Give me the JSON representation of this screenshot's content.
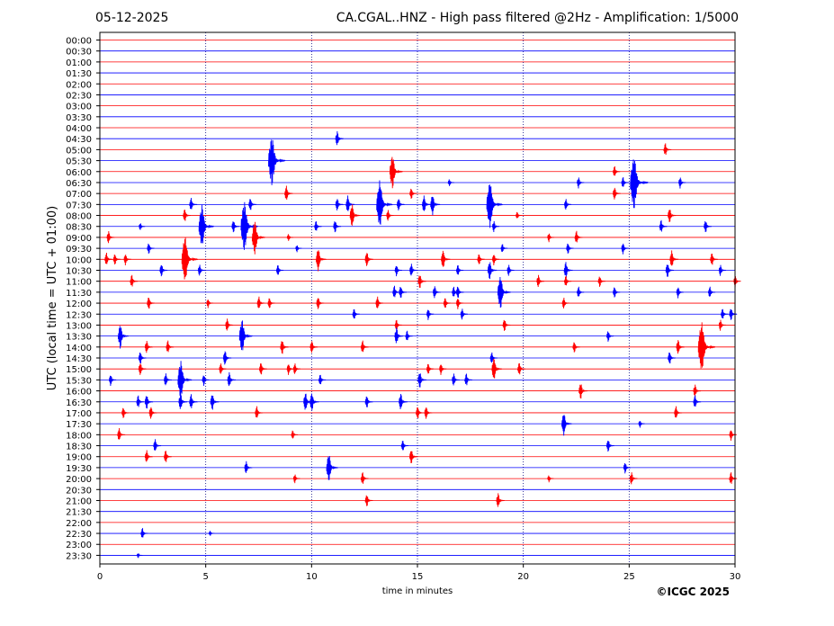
{
  "header": {
    "date": "05-12-2025",
    "title": "CA.CGAL..HNZ - High pass filtered @2Hz - Amplification: 1/5000"
  },
  "footer": {
    "credit": "©ICGC 2025"
  },
  "chart_data": {
    "type": "line",
    "xlabel": "time in minutes",
    "ylabel": "UTC (local time = UTC + 01:00)",
    "xlim": [
      0,
      30
    ],
    "xticks": [
      0,
      5,
      10,
      15,
      20,
      25,
      30
    ],
    "grid": "vertical dotted at 5, 10, 15, 20, 25",
    "row_colors": [
      "#ff0000",
      "#0000ff"
    ],
    "rows": [
      "00:00",
      "00:30",
      "01:00",
      "01:30",
      "02:00",
      "02:30",
      "03:00",
      "03:30",
      "04:00",
      "04:30",
      "05:00",
      "05:30",
      "06:00",
      "06:30",
      "07:00",
      "07:30",
      "08:00",
      "08:30",
      "09:00",
      "09:30",
      "10:00",
      "10:30",
      "11:00",
      "11:30",
      "12:00",
      "12:30",
      "13:00",
      "13:30",
      "14:00",
      "14:30",
      "15:00",
      "15:30",
      "16:00",
      "16:30",
      "17:00",
      "17:30",
      "18:00",
      "18:30",
      "19:00",
      "19:30",
      "20:00",
      "20:30",
      "21:00",
      "21:30",
      "22:00",
      "22:30",
      "23:00",
      "23:30"
    ],
    "events": [
      {
        "row": 9,
        "t": 11.2,
        "a": 0.4
      },
      {
        "row": 10,
        "t": 26.7,
        "a": 0.35
      },
      {
        "row": 11,
        "t": 8.1,
        "a": 1.3
      },
      {
        "row": 12,
        "t": 13.8,
        "a": 0.9
      },
      {
        "row": 12,
        "t": 24.3,
        "a": 0.3
      },
      {
        "row": 13,
        "t": 16.5,
        "a": 0.2
      },
      {
        "row": 13,
        "t": 22.6,
        "a": 0.3
      },
      {
        "row": 13,
        "t": 24.7,
        "a": 0.3
      },
      {
        "row": 13,
        "t": 25.2,
        "a": 1.4
      },
      {
        "row": 13,
        "t": 27.4,
        "a": 0.3
      },
      {
        "row": 14,
        "t": 8.8,
        "a": 0.4
      },
      {
        "row": 14,
        "t": 14.7,
        "a": 0.3
      },
      {
        "row": 14,
        "t": 24.3,
        "a": 0.35
      },
      {
        "row": 15,
        "t": 4.3,
        "a": 0.35
      },
      {
        "row": 15,
        "t": 7.1,
        "a": 0.35
      },
      {
        "row": 15,
        "t": 11.2,
        "a": 0.35
      },
      {
        "row": 15,
        "t": 11.7,
        "a": 0.45
      },
      {
        "row": 15,
        "t": 13.2,
        "a": 1.2
      },
      {
        "row": 15,
        "t": 14.1,
        "a": 0.35
      },
      {
        "row": 15,
        "t": 15.3,
        "a": 0.45
      },
      {
        "row": 15,
        "t": 15.7,
        "a": 0.55
      },
      {
        "row": 15,
        "t": 18.4,
        "a": 1.2
      },
      {
        "row": 15,
        "t": 22.0,
        "a": 0.3
      },
      {
        "row": 16,
        "t": 4.0,
        "a": 0.35
      },
      {
        "row": 16,
        "t": 11.9,
        "a": 0.6
      },
      {
        "row": 16,
        "t": 13.6,
        "a": 0.3
      },
      {
        "row": 16,
        "t": 19.7,
        "a": 0.2
      },
      {
        "row": 16,
        "t": 26.9,
        "a": 0.4
      },
      {
        "row": 17,
        "t": 1.9,
        "a": 0.2
      },
      {
        "row": 17,
        "t": 4.8,
        "a": 1.1
      },
      {
        "row": 17,
        "t": 6.3,
        "a": 0.35
      },
      {
        "row": 17,
        "t": 6.8,
        "a": 1.3
      },
      {
        "row": 17,
        "t": 10.2,
        "a": 0.3
      },
      {
        "row": 17,
        "t": 11.1,
        "a": 0.35
      },
      {
        "row": 17,
        "t": 18.6,
        "a": 0.3
      },
      {
        "row": 17,
        "t": 26.5,
        "a": 0.35
      },
      {
        "row": 17,
        "t": 28.6,
        "a": 0.35
      },
      {
        "row": 18,
        "t": 0.4,
        "a": 0.35
      },
      {
        "row": 18,
        "t": 7.3,
        "a": 0.9
      },
      {
        "row": 18,
        "t": 8.9,
        "a": 0.2
      },
      {
        "row": 18,
        "t": 21.2,
        "a": 0.25
      },
      {
        "row": 18,
        "t": 22.5,
        "a": 0.35
      },
      {
        "row": 19,
        "t": 2.3,
        "a": 0.3
      },
      {
        "row": 19,
        "t": 9.3,
        "a": 0.2
      },
      {
        "row": 19,
        "t": 19.0,
        "a": 0.25
      },
      {
        "row": 19,
        "t": 22.1,
        "a": 0.3
      },
      {
        "row": 19,
        "t": 24.7,
        "a": 0.3
      },
      {
        "row": 20,
        "t": 0.3,
        "a": 0.35
      },
      {
        "row": 20,
        "t": 0.7,
        "a": 0.3
      },
      {
        "row": 20,
        "t": 1.2,
        "a": 0.3
      },
      {
        "row": 20,
        "t": 4.0,
        "a": 1.2
      },
      {
        "row": 20,
        "t": 10.3,
        "a": 0.6
      },
      {
        "row": 20,
        "t": 12.6,
        "a": 0.4
      },
      {
        "row": 20,
        "t": 16.2,
        "a": 0.5
      },
      {
        "row": 20,
        "t": 17.9,
        "a": 0.3
      },
      {
        "row": 20,
        "t": 18.6,
        "a": 0.3
      },
      {
        "row": 20,
        "t": 27.0,
        "a": 0.45
      },
      {
        "row": 20,
        "t": 28.9,
        "a": 0.35
      },
      {
        "row": 21,
        "t": 2.9,
        "a": 0.35
      },
      {
        "row": 21,
        "t": 4.7,
        "a": 0.3
      },
      {
        "row": 21,
        "t": 8.4,
        "a": 0.3
      },
      {
        "row": 21,
        "t": 14.0,
        "a": 0.3
      },
      {
        "row": 21,
        "t": 14.7,
        "a": 0.35
      },
      {
        "row": 21,
        "t": 16.9,
        "a": 0.3
      },
      {
        "row": 21,
        "t": 18.4,
        "a": 0.5
      },
      {
        "row": 21,
        "t": 19.3,
        "a": 0.3
      },
      {
        "row": 21,
        "t": 22.0,
        "a": 0.45
      },
      {
        "row": 21,
        "t": 26.8,
        "a": 0.4
      },
      {
        "row": 21,
        "t": 29.3,
        "a": 0.3
      },
      {
        "row": 22,
        "t": 1.5,
        "a": 0.35
      },
      {
        "row": 22,
        "t": 15.1,
        "a": 0.4
      },
      {
        "row": 22,
        "t": 20.7,
        "a": 0.35
      },
      {
        "row": 22,
        "t": 22.0,
        "a": 0.3
      },
      {
        "row": 22,
        "t": 23.6,
        "a": 0.3
      },
      {
        "row": 22,
        "t": 30.0,
        "a": 0.3
      },
      {
        "row": 23,
        "t": 13.9,
        "a": 0.35
      },
      {
        "row": 23,
        "t": 14.2,
        "a": 0.35
      },
      {
        "row": 23,
        "t": 15.8,
        "a": 0.35
      },
      {
        "row": 23,
        "t": 16.7,
        "a": 0.3
      },
      {
        "row": 23,
        "t": 16.9,
        "a": 0.35
      },
      {
        "row": 23,
        "t": 18.9,
        "a": 0.9
      },
      {
        "row": 23,
        "t": 22.6,
        "a": 0.3
      },
      {
        "row": 23,
        "t": 24.3,
        "a": 0.3
      },
      {
        "row": 23,
        "t": 27.3,
        "a": 0.3
      },
      {
        "row": 23,
        "t": 28.8,
        "a": 0.3
      },
      {
        "row": 24,
        "t": 2.3,
        "a": 0.35
      },
      {
        "row": 24,
        "t": 5.1,
        "a": 0.25
      },
      {
        "row": 24,
        "t": 7.5,
        "a": 0.35
      },
      {
        "row": 24,
        "t": 8.0,
        "a": 0.3
      },
      {
        "row": 24,
        "t": 10.3,
        "a": 0.35
      },
      {
        "row": 24,
        "t": 13.1,
        "a": 0.35
      },
      {
        "row": 24,
        "t": 16.3,
        "a": 0.3
      },
      {
        "row": 24,
        "t": 16.9,
        "a": 0.3
      },
      {
        "row": 24,
        "t": 21.9,
        "a": 0.3
      },
      {
        "row": 25,
        "t": 12.0,
        "a": 0.3
      },
      {
        "row": 25,
        "t": 15.5,
        "a": 0.3
      },
      {
        "row": 25,
        "t": 17.1,
        "a": 0.3
      },
      {
        "row": 25,
        "t": 29.4,
        "a": 0.3
      },
      {
        "row": 25,
        "t": 29.8,
        "a": 0.35
      },
      {
        "row": 26,
        "t": 6.0,
        "a": 0.35
      },
      {
        "row": 26,
        "t": 14.0,
        "a": 0.3
      },
      {
        "row": 26,
        "t": 19.1,
        "a": 0.35
      },
      {
        "row": 26,
        "t": 29.3,
        "a": 0.3
      },
      {
        "row": 27,
        "t": 0.95,
        "a": 0.65
      },
      {
        "row": 27,
        "t": 6.7,
        "a": 0.9
      },
      {
        "row": 27,
        "t": 14.0,
        "a": 0.45
      },
      {
        "row": 27,
        "t": 14.5,
        "a": 0.3
      },
      {
        "row": 27,
        "t": 24.0,
        "a": 0.3
      },
      {
        "row": 28,
        "t": 2.2,
        "a": 0.35
      },
      {
        "row": 28,
        "t": 3.2,
        "a": 0.35
      },
      {
        "row": 28,
        "t": 8.6,
        "a": 0.4
      },
      {
        "row": 28,
        "t": 10.0,
        "a": 0.35
      },
      {
        "row": 28,
        "t": 12.4,
        "a": 0.35
      },
      {
        "row": 28,
        "t": 22.4,
        "a": 0.3
      },
      {
        "row": 28,
        "t": 27.3,
        "a": 0.4
      },
      {
        "row": 28,
        "t": 28.4,
        "a": 1.3
      },
      {
        "row": 29,
        "t": 1.9,
        "a": 0.35
      },
      {
        "row": 29,
        "t": 5.9,
        "a": 0.4
      },
      {
        "row": 29,
        "t": 18.5,
        "a": 0.3
      },
      {
        "row": 29,
        "t": 26.9,
        "a": 0.35
      },
      {
        "row": 30,
        "t": 1.9,
        "a": 0.35
      },
      {
        "row": 30,
        "t": 5.7,
        "a": 0.3
      },
      {
        "row": 30,
        "t": 7.6,
        "a": 0.35
      },
      {
        "row": 30,
        "t": 8.9,
        "a": 0.3
      },
      {
        "row": 30,
        "t": 9.2,
        "a": 0.3
      },
      {
        "row": 30,
        "t": 15.5,
        "a": 0.3
      },
      {
        "row": 30,
        "t": 16.1,
        "a": 0.3
      },
      {
        "row": 30,
        "t": 18.6,
        "a": 0.6
      },
      {
        "row": 30,
        "t": 19.8,
        "a": 0.35
      },
      {
        "row": 31,
        "t": 0.5,
        "a": 0.3
      },
      {
        "row": 31,
        "t": 3.1,
        "a": 0.35
      },
      {
        "row": 31,
        "t": 3.8,
        "a": 1.0
      },
      {
        "row": 31,
        "t": 4.9,
        "a": 0.3
      },
      {
        "row": 31,
        "t": 6.1,
        "a": 0.4
      },
      {
        "row": 31,
        "t": 10.4,
        "a": 0.3
      },
      {
        "row": 31,
        "t": 15.1,
        "a": 0.45
      },
      {
        "row": 31,
        "t": 16.7,
        "a": 0.35
      },
      {
        "row": 31,
        "t": 17.3,
        "a": 0.35
      },
      {
        "row": 32,
        "t": 22.7,
        "a": 0.45
      },
      {
        "row": 32,
        "t": 28.1,
        "a": 0.35
      },
      {
        "row": 33,
        "t": 1.8,
        "a": 0.35
      },
      {
        "row": 33,
        "t": 2.2,
        "a": 0.4
      },
      {
        "row": 33,
        "t": 3.8,
        "a": 0.45
      },
      {
        "row": 33,
        "t": 4.3,
        "a": 0.4
      },
      {
        "row": 33,
        "t": 5.3,
        "a": 0.45
      },
      {
        "row": 33,
        "t": 9.7,
        "a": 0.5
      },
      {
        "row": 33,
        "t": 10.0,
        "a": 0.5
      },
      {
        "row": 33,
        "t": 12.6,
        "a": 0.35
      },
      {
        "row": 33,
        "t": 14.2,
        "a": 0.45
      },
      {
        "row": 33,
        "t": 28.1,
        "a": 0.35
      },
      {
        "row": 34,
        "t": 1.1,
        "a": 0.3
      },
      {
        "row": 34,
        "t": 2.4,
        "a": 0.35
      },
      {
        "row": 34,
        "t": 7.4,
        "a": 0.35
      },
      {
        "row": 34,
        "t": 15.0,
        "a": 0.35
      },
      {
        "row": 34,
        "t": 15.4,
        "a": 0.35
      },
      {
        "row": 34,
        "t": 27.2,
        "a": 0.35
      },
      {
        "row": 35,
        "t": 21.9,
        "a": 0.6
      },
      {
        "row": 35,
        "t": 25.5,
        "a": 0.2
      },
      {
        "row": 36,
        "t": 0.9,
        "a": 0.35
      },
      {
        "row": 36,
        "t": 9.1,
        "a": 0.25
      },
      {
        "row": 36,
        "t": 29.8,
        "a": 0.3
      },
      {
        "row": 37,
        "t": 2.6,
        "a": 0.35
      },
      {
        "row": 37,
        "t": 14.3,
        "a": 0.3
      },
      {
        "row": 37,
        "t": 24.0,
        "a": 0.35
      },
      {
        "row": 38,
        "t": 2.2,
        "a": 0.35
      },
      {
        "row": 38,
        "t": 3.1,
        "a": 0.35
      },
      {
        "row": 38,
        "t": 14.7,
        "a": 0.4
      },
      {
        "row": 39,
        "t": 6.9,
        "a": 0.35
      },
      {
        "row": 39,
        "t": 10.8,
        "a": 0.75
      },
      {
        "row": 39,
        "t": 24.8,
        "a": 0.3
      },
      {
        "row": 40,
        "t": 9.2,
        "a": 0.25
      },
      {
        "row": 40,
        "t": 12.4,
        "a": 0.35
      },
      {
        "row": 40,
        "t": 21.2,
        "a": 0.2
      },
      {
        "row": 40,
        "t": 25.1,
        "a": 0.35
      },
      {
        "row": 40,
        "t": 29.8,
        "a": 0.35
      },
      {
        "row": 42,
        "t": 12.6,
        "a": 0.35
      },
      {
        "row": 42,
        "t": 18.8,
        "a": 0.4
      },
      {
        "row": 45,
        "t": 2.0,
        "a": 0.3
      },
      {
        "row": 45,
        "t": 5.2,
        "a": 0.15
      },
      {
        "row": 47,
        "t": 1.8,
        "a": 0.15
      }
    ]
  }
}
